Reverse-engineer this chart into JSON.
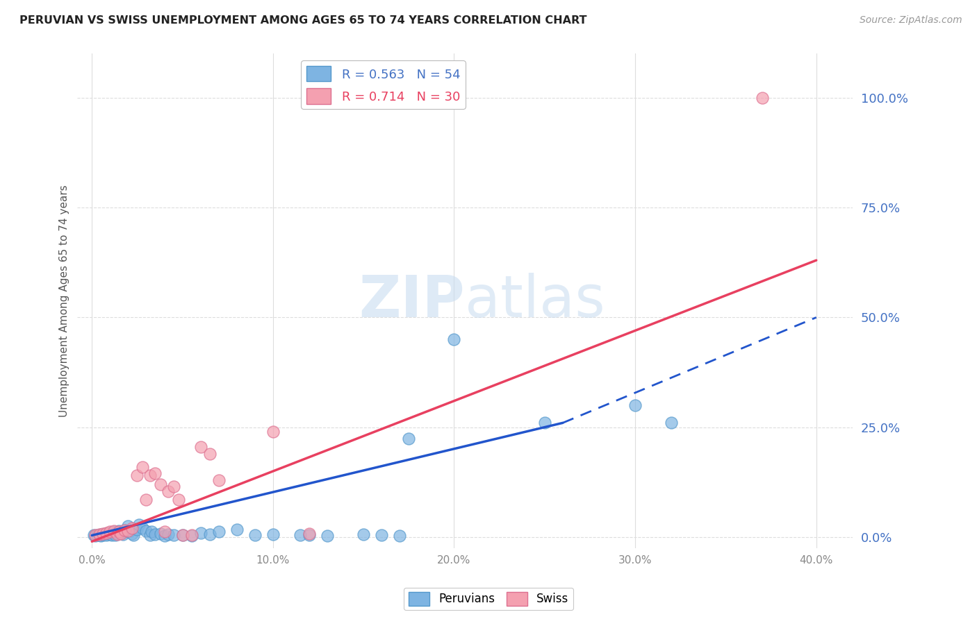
{
  "title": "PERUVIAN VS SWISS UNEMPLOYMENT AMONG AGES 65 TO 74 YEARS CORRELATION CHART",
  "source": "Source: ZipAtlas.com",
  "xlabel_ticks": [
    "0.0%",
    "10.0%",
    "20.0%",
    "30.0%",
    "40.0%"
  ],
  "xlabel_tick_vals": [
    0.0,
    10.0,
    20.0,
    30.0,
    40.0
  ],
  "ylabel_ticks": [
    "0.0%",
    "25.0%",
    "50.0%",
    "75.0%",
    "100.0%"
  ],
  "ylabel_tick_vals": [
    0.0,
    25.0,
    50.0,
    75.0,
    100.0
  ],
  "ylabel_label": "Unemployment Among Ages 65 to 74 years",
  "peruvian_color": "#7EB4E2",
  "swiss_color": "#F4A0B0",
  "peruvian_line_color": "#2255CC",
  "swiss_line_color": "#E84060",
  "watermark_color": "#C8DCF0",
  "peruvian_scatter": [
    [
      0.1,
      0.4
    ],
    [
      0.2,
      0.3
    ],
    [
      0.3,
      0.5
    ],
    [
      0.4,
      0.4
    ],
    [
      0.5,
      0.6
    ],
    [
      0.5,
      0.3
    ],
    [
      0.6,
      0.5
    ],
    [
      0.7,
      0.8
    ],
    [
      0.8,
      0.4
    ],
    [
      0.9,
      1.0
    ],
    [
      1.0,
      0.6
    ],
    [
      1.1,
      0.5
    ],
    [
      1.2,
      1.2
    ],
    [
      1.3,
      0.4
    ],
    [
      1.4,
      0.8
    ],
    [
      1.5,
      1.5
    ],
    [
      1.6,
      1.0
    ],
    [
      1.7,
      0.7
    ],
    [
      1.8,
      1.6
    ],
    [
      1.9,
      1.2
    ],
    [
      2.0,
      2.5
    ],
    [
      2.1,
      1.5
    ],
    [
      2.2,
      0.8
    ],
    [
      2.3,
      0.4
    ],
    [
      2.5,
      1.8
    ],
    [
      2.6,
      2.8
    ],
    [
      2.8,
      2.0
    ],
    [
      3.0,
      1.5
    ],
    [
      3.2,
      0.4
    ],
    [
      3.3,
      1.2
    ],
    [
      3.5,
      0.7
    ],
    [
      3.8,
      0.8
    ],
    [
      4.0,
      0.3
    ],
    [
      4.2,
      0.7
    ],
    [
      4.5,
      0.4
    ],
    [
      5.0,
      0.4
    ],
    [
      5.5,
      0.3
    ],
    [
      6.0,
      1.0
    ],
    [
      6.5,
      0.7
    ],
    [
      7.0,
      1.2
    ],
    [
      8.0,
      1.8
    ],
    [
      9.0,
      0.4
    ],
    [
      10.0,
      0.7
    ],
    [
      11.5,
      0.4
    ],
    [
      12.0,
      0.4
    ],
    [
      13.0,
      0.3
    ],
    [
      15.0,
      0.7
    ],
    [
      16.0,
      0.4
    ],
    [
      17.0,
      0.3
    ],
    [
      17.5,
      22.5
    ],
    [
      20.0,
      45.0
    ],
    [
      25.0,
      26.0
    ],
    [
      30.0,
      30.0
    ],
    [
      32.0,
      26.0
    ]
  ],
  "swiss_scatter": [
    [
      0.2,
      0.4
    ],
    [
      0.4,
      0.6
    ],
    [
      0.6,
      0.8
    ],
    [
      0.8,
      1.0
    ],
    [
      1.0,
      1.2
    ],
    [
      1.2,
      1.5
    ],
    [
      1.4,
      0.7
    ],
    [
      1.5,
      1.2
    ],
    [
      1.6,
      0.8
    ],
    [
      1.8,
      1.6
    ],
    [
      2.0,
      1.5
    ],
    [
      2.2,
      2.0
    ],
    [
      2.5,
      14.0
    ],
    [
      2.8,
      16.0
    ],
    [
      3.0,
      8.5
    ],
    [
      3.2,
      14.0
    ],
    [
      3.5,
      14.5
    ],
    [
      3.8,
      12.0
    ],
    [
      4.0,
      1.2
    ],
    [
      4.2,
      10.5
    ],
    [
      4.5,
      11.5
    ],
    [
      4.8,
      8.5
    ],
    [
      5.0,
      0.4
    ],
    [
      5.5,
      0.4
    ],
    [
      6.0,
      20.5
    ],
    [
      6.5,
      19.0
    ],
    [
      7.0,
      13.0
    ],
    [
      10.0,
      24.0
    ],
    [
      12.0,
      0.8
    ],
    [
      37.0,
      100.0
    ]
  ],
  "peruvian_solid_line": {
    "x0": 0.0,
    "y0": 0.4,
    "x1": 26.0,
    "y1": 26.0
  },
  "peruvian_dash_line": {
    "x0": 26.0,
    "y0": 26.0,
    "x1": 40.0,
    "y1": 50.0
  },
  "swiss_line": {
    "x0": 0.0,
    "y0": -1.0,
    "x1": 40.0,
    "y1": 63.0
  },
  "xlim": [
    -0.8,
    42.0
  ],
  "ylim": [
    -2.5,
    110.0
  ],
  "grid_color": "#DDDDDD",
  "tick_color": "#888888"
}
